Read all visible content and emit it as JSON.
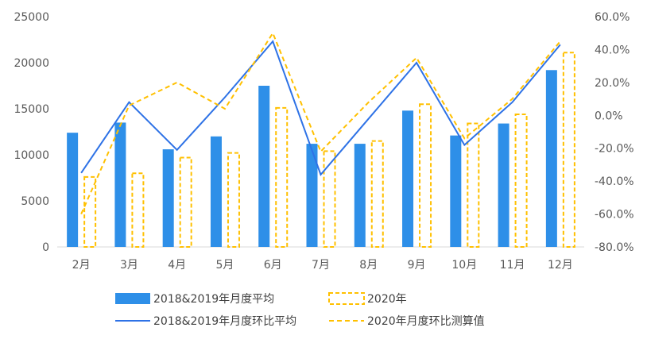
{
  "chart_data": {
    "type": "bar+line",
    "categories": [
      "2月",
      "3月",
      "4月",
      "5月",
      "6月",
      "7月",
      "8月",
      "9月",
      "10月",
      "11月",
      "12月"
    ],
    "bar_series": [
      {
        "name": "2018&2019年月度平均",
        "color": "#2e8fe8",
        "style": "solid",
        "values": [
          12400,
          13500,
          10600,
          12000,
          17500,
          11200,
          11200,
          14800,
          12100,
          13400,
          19200
        ]
      },
      {
        "name": "2020年",
        "color": "#ffc000",
        "style": "dashed",
        "values": [
          7600,
          8000,
          9700,
          10200,
          15100,
          10400,
          11500,
          15500,
          13400,
          14400,
          21100
        ]
      }
    ],
    "line_series": [
      {
        "name": "2018&2019年月度环比平均",
        "color": "#2e72e6",
        "style": "solid",
        "values": [
          -35,
          8,
          -21,
          11,
          45,
          -36,
          -2,
          32,
          -18,
          8,
          43
        ]
      },
      {
        "name": "2020年月度环比测算值",
        "color": "#ffc000",
        "style": "dashed",
        "values": [
          -60,
          6,
          20,
          4,
          50,
          -22,
          8,
          35,
          -14,
          10,
          45
        ]
      }
    ],
    "y_left": {
      "min": 0,
      "max": 25000,
      "ticks": [
        "0",
        "5000",
        "10000",
        "15000",
        "20000",
        "25000"
      ]
    },
    "y_right": {
      "min": -80,
      "max": 60,
      "ticks": [
        "-80.0%",
        "-60.0%",
        "-40.0%",
        "-20.0%",
        "0.0%",
        "20.0%",
        "40.0%",
        "60.0%"
      ]
    },
    "legend_position": "bottom"
  }
}
